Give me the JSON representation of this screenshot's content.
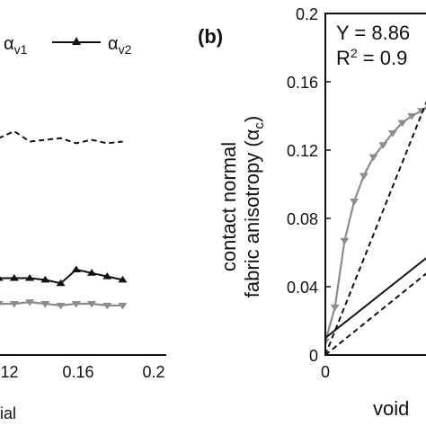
{
  "chart_data": [
    {
      "type": "line",
      "panel": "a",
      "xlabel_fragment": "ial",
      "x_ticks": [
        "0.12",
        "0.16",
        "0.2"
      ],
      "xlim": [
        0.095,
        0.2
      ],
      "ylim": [
        0,
        0.2
      ],
      "legend": [
        {
          "base": "α",
          "sub": "v1"
        },
        {
          "base": "α",
          "sub": "v2"
        }
      ],
      "series": [
        {
          "name": "αv1",
          "style": "dashed",
          "color": "#111111",
          "points": [
            [
              0.095,
              0.13
            ],
            [
              0.1,
              0.127
            ],
            [
              0.11,
              0.131
            ],
            [
              0.12,
              0.125
            ],
            [
              0.13,
              0.126
            ],
            [
              0.14,
              0.127
            ],
            [
              0.15,
              0.124
            ],
            [
              0.16,
              0.126
            ],
            [
              0.17,
              0.124
            ],
            [
              0.18,
              0.125
            ]
          ]
        },
        {
          "name": "αv2",
          "style": "solid-triangle",
          "color": "#111111",
          "points": [
            [
              0.095,
              0.046
            ],
            [
              0.1,
              0.045
            ],
            [
              0.11,
              0.045
            ],
            [
              0.12,
              0.045
            ],
            [
              0.13,
              0.044
            ],
            [
              0.14,
              0.042
            ],
            [
              0.15,
              0.05
            ],
            [
              0.16,
              0.048
            ],
            [
              0.17,
              0.046
            ],
            [
              0.18,
              0.044
            ]
          ]
        },
        {
          "style": "gray-invtriangle",
          "color": "#8c8c8c",
          "points": [
            [
              0.095,
              0.03
            ],
            [
              0.1,
              0.03
            ],
            [
              0.11,
              0.03
            ],
            [
              0.12,
              0.031
            ],
            [
              0.13,
              0.03
            ],
            [
              0.14,
              0.029
            ],
            [
              0.15,
              0.03
            ],
            [
              0.16,
              0.03
            ],
            [
              0.17,
              0.029
            ],
            [
              0.18,
              0.029
            ]
          ]
        }
      ]
    },
    {
      "type": "scatter",
      "panel": "b",
      "panel_label": "(b)",
      "ylabel_line1": "contact normal",
      "ylabel_line2": "fabric anisotropy (α",
      "ylabel_sub": "c",
      "ylabel_close": ")",
      "xlabel": "void",
      "x_ticks": [
        "0"
      ],
      "y_ticks": [
        "0",
        "0.04",
        "0.08",
        "0.12",
        "0.16",
        "0.2"
      ],
      "xlim": [
        0,
        0.06
      ],
      "ylim": [
        0,
        0.2
      ],
      "annotation_line1": "Y = 8.86",
      "annotation_line2_base": "R",
      "annotation_line2_sup": "2",
      "annotation_line2_rest": " = 0.9",
      "series": [
        {
          "style": "gray-invtriangle",
          "color": "#8c8c8c",
          "points": [
            [
              0.0,
              0.008
            ],
            [
              0.003,
              0.028
            ],
            [
              0.006,
              0.067
            ],
            [
              0.009,
              0.09
            ],
            [
              0.012,
              0.105
            ],
            [
              0.015,
              0.116
            ],
            [
              0.018,
              0.123
            ],
            [
              0.021,
              0.13
            ],
            [
              0.024,
              0.136
            ],
            [
              0.027,
              0.14
            ],
            [
              0.03,
              0.143
            ],
            [
              0.033,
              0.147
            ]
          ]
        },
        {
          "style": "dashed",
          "color": "#111111",
          "points": [
            [
              0.0,
              0.0
            ],
            [
              0.033,
              0.155
            ]
          ]
        },
        {
          "style": "solid",
          "color": "#111111",
          "points": [
            [
              0.0,
              0.01
            ],
            [
              0.033,
              0.059
            ]
          ]
        },
        {
          "style": "dashed",
          "color": "#111111",
          "points": [
            [
              0.0,
              0.0
            ],
            [
              0.033,
              0.05
            ]
          ]
        }
      ]
    }
  ]
}
